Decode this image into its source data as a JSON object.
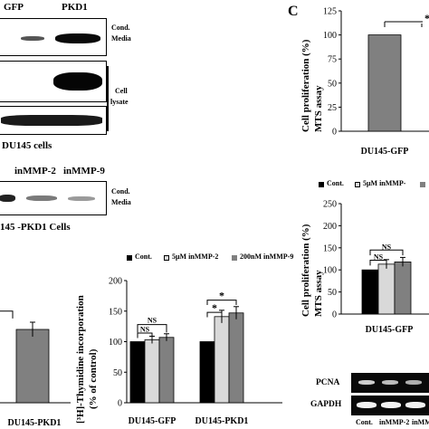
{
  "blot_top": {
    "lanes": [
      "GFP",
      "PKD1"
    ],
    "row_labels": [
      "Cond.",
      "Media",
      "Cell",
      "lysate"
    ],
    "cell_line": "DU145 cells"
  },
  "blot_mid": {
    "lanes": [
      "inMMP-2",
      "inMMP-9"
    ],
    "row_labels": [
      "Cond.",
      "Media"
    ],
    "cell_line": "145 -PKD1 Cells"
  },
  "panel_letters": [
    "C"
  ],
  "chart_data": [
    {
      "type": "bar",
      "id": "c-top",
      "categories": [
        "DU145-GFP"
      ],
      "series": [
        {
          "values": [
            100
          ]
        }
      ],
      "ylabel": "Cell proliferation (%) MTS assay",
      "ylim": [
        0,
        125
      ],
      "yticks": [
        0,
        25,
        50,
        75,
        100,
        125
      ],
      "annotations": [
        "*"
      ]
    },
    {
      "type": "bar",
      "id": "c-mid",
      "categories": [
        "DU145-GFP"
      ],
      "series": [
        {
          "name": "Cont.",
          "values": [
            100
          ]
        },
        {
          "name": "5μM inMMP-",
          "values": [
            113
          ]
        },
        {
          "name": "",
          "values": [
            118
          ]
        }
      ],
      "ylabel": "Cell proliferation (%) MTS assay",
      "ylim": [
        0,
        250
      ],
      "yticks": [
        0,
        50,
        100,
        150,
        200,
        250
      ],
      "annotations": [
        "NS",
        "NS"
      ]
    },
    {
      "type": "bar",
      "id": "b-thymidine",
      "categories": [
        "DU145-GFP",
        "DU145-PKD1"
      ],
      "series": [
        {
          "name": "Cont.",
          "values": [
            100,
            100
          ]
        },
        {
          "name": "5μM inMMP-2",
          "values": [
            103,
            141
          ]
        },
        {
          "name": "200nM inMMP-9",
          "values": [
            107,
            147
          ]
        }
      ],
      "ylabel": "[³H]-Thymidine incorporation (% of control)",
      "ylim": [
        0,
        200
      ],
      "yticks": [
        0,
        50,
        100,
        150,
        200
      ],
      "annotations": [
        "NS",
        "NS",
        "*",
        "*"
      ]
    },
    {
      "type": "bar",
      "id": "left-partial",
      "categories": [
        "DU145-PKD1"
      ],
      "series": [
        {
          "values": [
            120
          ]
        }
      ]
    }
  ],
  "pcna_blot": {
    "row_labels": [
      "PCNA",
      "GAPDH"
    ],
    "lanes": [
      "Cont.",
      "inMMP-2",
      "inMM"
    ]
  },
  "colors": {
    "black": "#000000",
    "light": "#d9d9d9",
    "gray": "#808080"
  }
}
